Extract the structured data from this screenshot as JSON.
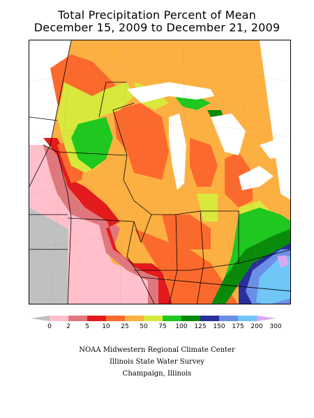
{
  "title": {
    "line1": "Total Precipitation Percent of Mean",
    "line2": "December 15, 2009 to December 21, 2009"
  },
  "legend": {
    "ticks": [
      "0",
      "2",
      "5",
      "10",
      "25",
      "50",
      "75",
      "100",
      "125",
      "150",
      "175",
      "200",
      "300"
    ],
    "colors": [
      "#c0c0c0",
      "#ffc0cb",
      "#e0777d",
      "#e31a1c",
      "#fb6a2c",
      "#fdb042",
      "#d8e83c",
      "#1ec81e",
      "#0a8a0a",
      "#2a2f9e",
      "#6a8fe8",
      "#6fc6f7",
      "#d9a8f0"
    ]
  },
  "credits": {
    "line1": "NOAA Midwestern Regional Climate Center",
    "line2": "Illinois State Water Survey",
    "line3": "Champaign, Illinois"
  }
}
